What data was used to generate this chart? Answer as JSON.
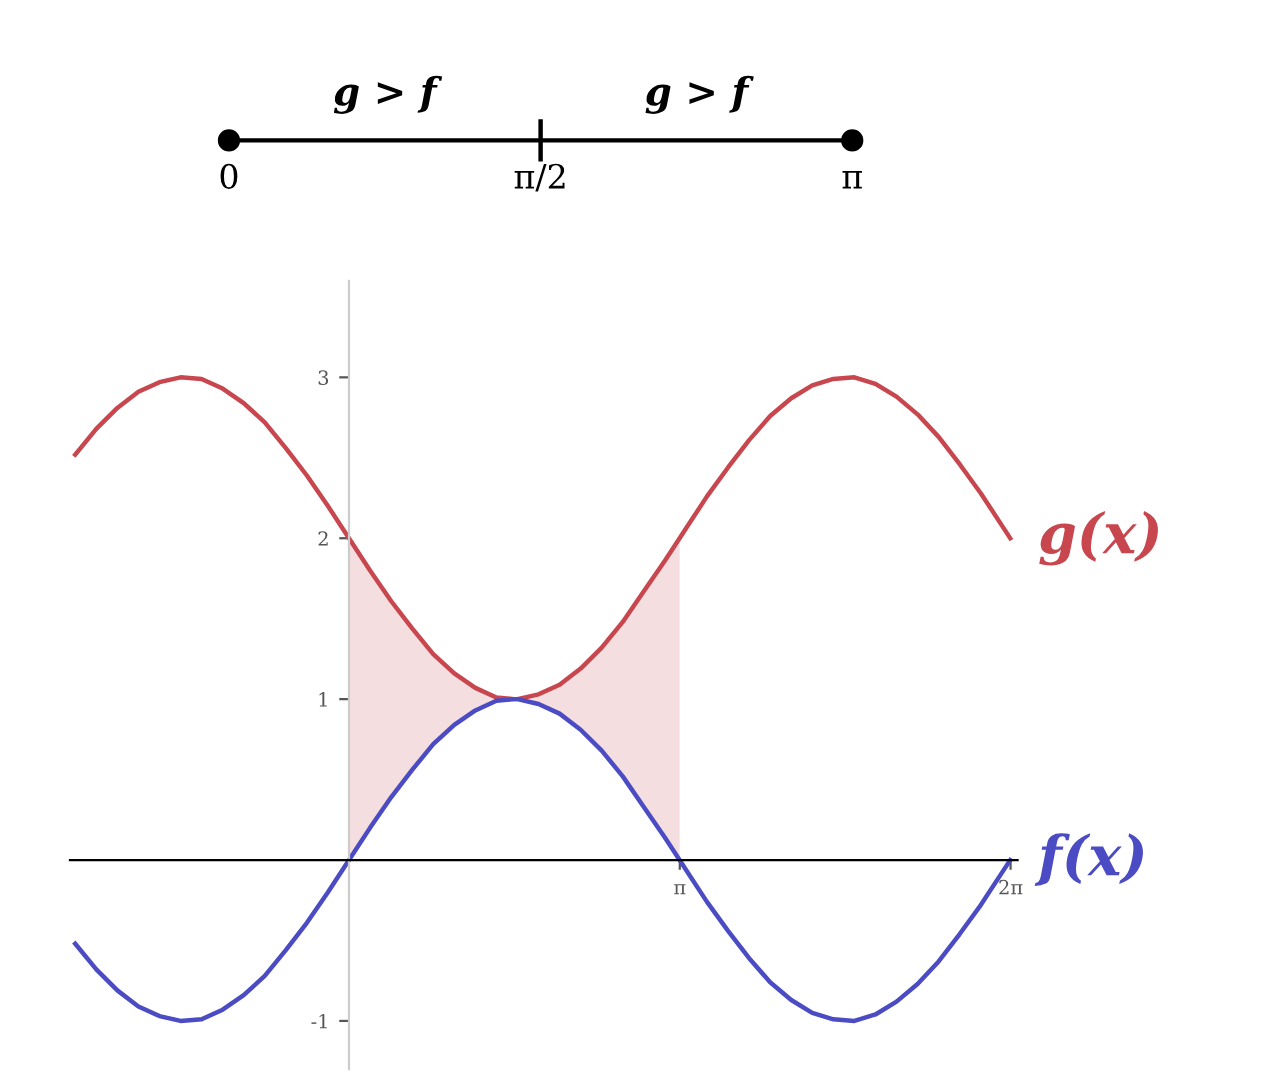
{
  "chart_data": [
    {
      "type": "other",
      "annotations": [
        "g > f",
        "g > f",
        "0",
        "π/2",
        "π"
      ]
    },
    {
      "type": "line",
      "xlim": [
        -2.65,
        6.35
      ],
      "ylim": [
        -1.3,
        3.6
      ],
      "xticks": [
        {
          "value": 3.1416,
          "label": "π"
        },
        {
          "value": 6.2832,
          "label": "2π"
        }
      ],
      "yticks": [
        -1,
        1,
        2,
        3
      ],
      "grid": false,
      "legend": false,
      "x": [
        -2.6,
        -2.4,
        -2.2,
        -2.0,
        -1.8,
        -1.6,
        -1.4,
        -1.2,
        -1.0,
        -0.8,
        -0.6,
        -0.4,
        -0.2,
        0,
        0.2,
        0.4,
        0.6,
        0.8,
        1.0,
        1.2,
        1.4,
        1.57,
        1.6,
        1.8,
        2.0,
        2.2,
        2.4,
        2.6,
        2.8,
        3.0,
        3.14,
        3.2,
        3.4,
        3.6,
        3.8,
        4.0,
        4.2,
        4.4,
        4.6,
        4.8,
        5.0,
        5.2,
        5.4,
        5.6,
        5.8,
        6.0,
        6.2,
        6.28
      ],
      "series": [
        {
          "name": "g(x)",
          "color": "#c8474f",
          "values": [
            2.52,
            2.68,
            2.81,
            2.91,
            2.97,
            3.0,
            2.99,
            2.93,
            2.84,
            2.72,
            2.56,
            2.39,
            2.2,
            2.0,
            1.8,
            1.61,
            1.44,
            1.28,
            1.16,
            1.07,
            1.01,
            1.0,
            1.0,
            1.03,
            1.09,
            1.19,
            1.32,
            1.48,
            1.67,
            1.86,
            2.0,
            2.06,
            2.26,
            2.44,
            2.61,
            2.76,
            2.87,
            2.95,
            2.99,
            3.0,
            2.96,
            2.88,
            2.77,
            2.63,
            2.46,
            2.28,
            2.08,
            2.0
          ],
          "lower": [
            null,
            null,
            null,
            null,
            null,
            null,
            null,
            null,
            null,
            null,
            null,
            null,
            null,
            0,
            0.2,
            0.39,
            0.56,
            0.72,
            0.84,
            0.93,
            0.99,
            1.0,
            1.0,
            0.97,
            0.91,
            0.81,
            0.68,
            0.52,
            0.33,
            0.14,
            0,
            null,
            null,
            null,
            null,
            null,
            null,
            null,
            null,
            null,
            null,
            null,
            null,
            null,
            null,
            null,
            null,
            null
          ],
          "upper": [
            null,
            null,
            null,
            null,
            null,
            null,
            null,
            null,
            null,
            null,
            null,
            null,
            null,
            2.0,
            1.8,
            1.61,
            1.44,
            1.28,
            1.16,
            1.07,
            1.01,
            1.0,
            1.0,
            1.03,
            1.09,
            1.19,
            1.32,
            1.48,
            1.67,
            1.86,
            2.0,
            null,
            null,
            null,
            null,
            null,
            null,
            null,
            null,
            null,
            null,
            null,
            null,
            null,
            null,
            null,
            null,
            null
          ]
        },
        {
          "name": "f(x)",
          "color": "#4b4bc4",
          "values": [
            -0.52,
            -0.68,
            -0.81,
            -0.91,
            -0.97,
            -1.0,
            -0.99,
            -0.93,
            -0.84,
            -0.72,
            -0.56,
            -0.39,
            -0.2,
            0,
            0.2,
            0.39,
            0.56,
            0.72,
            0.84,
            0.93,
            0.99,
            1.0,
            1.0,
            0.97,
            0.91,
            0.81,
            0.68,
            0.52,
            0.33,
            0.14,
            0,
            -0.06,
            -0.26,
            -0.44,
            -0.61,
            -0.76,
            -0.87,
            -0.95,
            -0.99,
            -1.0,
            -0.96,
            -0.88,
            -0.77,
            -0.63,
            -0.46,
            -0.28,
            -0.08,
            0
          ]
        }
      ]
    }
  ]
}
